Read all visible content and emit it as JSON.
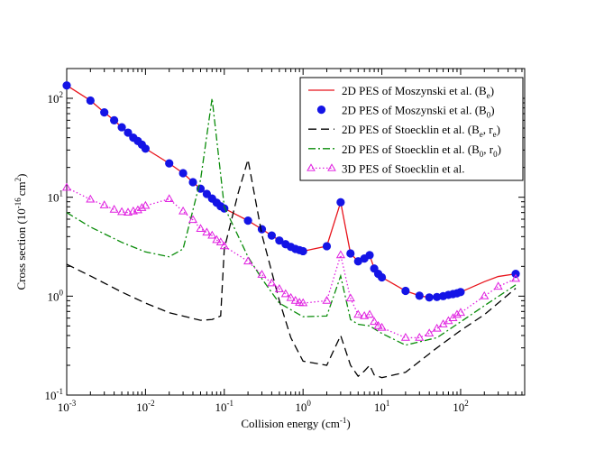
{
  "chart_data": {
    "type": "line",
    "title": "",
    "xlabel": "Collision energy (cm-1)",
    "xlabel_parts": {
      "text": "Collision energy (cm",
      "sup": "-1",
      "close": ")"
    },
    "ylabel": "Cross section (10-16 cm2)",
    "ylabel_parts": {
      "a": "Cross section (10",
      "sup1": "-16",
      "b": "cm",
      "sup2": "2",
      "c": ")"
    },
    "xscale": "log",
    "yscale": "log",
    "xlim": [
      0.001,
      650
    ],
    "ylim": [
      0.1,
      200
    ],
    "grid": false,
    "legend_position": "top-right",
    "x_ticks": [
      {
        "value": 0.001,
        "base": "10",
        "exp": "-3"
      },
      {
        "value": 0.01,
        "base": "10",
        "exp": "-2"
      },
      {
        "value": 0.1,
        "base": "10",
        "exp": "-1"
      },
      {
        "value": 1,
        "base": "10",
        "exp": "0"
      },
      {
        "value": 10,
        "base": "10",
        "exp": "1"
      },
      {
        "value": 100,
        "base": "10",
        "exp": "2"
      }
    ],
    "y_ticks": [
      {
        "value": 0.1,
        "base": "10",
        "exp": "-1"
      },
      {
        "value": 1,
        "base": "10",
        "exp": "0"
      },
      {
        "value": 10,
        "base": "10",
        "exp": "1"
      },
      {
        "value": 100,
        "base": "10",
        "exp": "2"
      }
    ],
    "series": [
      {
        "name": "2D PES of Moszynski et al. (Be)",
        "legend_main": "2D PES of Moszynski et al. (B",
        "legend_sub": "e",
        "legend_tail": ")",
        "style": "solid",
        "marker": "none",
        "color": "#e8141c",
        "x": [
          0.001,
          0.002,
          0.003,
          0.004,
          0.005,
          0.006,
          0.007,
          0.008,
          0.009,
          0.01,
          0.02,
          0.03,
          0.04,
          0.05,
          0.06,
          0.07,
          0.08,
          0.09,
          0.1,
          0.2,
          0.3,
          0.4,
          0.5,
          0.6,
          0.7,
          0.8,
          0.9,
          1,
          2,
          3,
          4,
          5,
          6,
          7,
          8,
          9,
          10,
          20,
          30,
          40,
          50,
          60,
          70,
          80,
          90,
          100,
          200,
          300,
          500
        ],
        "y": [
          135,
          95,
          72,
          60,
          51,
          45,
          40,
          37,
          34,
          31,
          22,
          17.5,
          14.2,
          12.2,
          10.8,
          9.7,
          8.8,
          8.1,
          7.7,
          5.8,
          4.75,
          4.1,
          3.65,
          3.35,
          3.15,
          3.0,
          2.92,
          2.85,
          3.2,
          8.9,
          2.7,
          2.25,
          2.4,
          2.6,
          1.9,
          1.68,
          1.55,
          1.13,
          1.01,
          0.97,
          0.98,
          1.0,
          1.03,
          1.05,
          1.07,
          1.1,
          1.4,
          1.58,
          1.68
        ]
      },
      {
        "name": "2D PES of Moszynski et al. (B0)",
        "legend_main": "2D PES of Moszynski et al. (B",
        "legend_sub": "0",
        "legend_tail": ")",
        "style": "none",
        "marker": "circle",
        "color": "#1414e6",
        "x": [
          0.001,
          0.002,
          0.003,
          0.004,
          0.005,
          0.006,
          0.007,
          0.008,
          0.009,
          0.01,
          0.02,
          0.03,
          0.04,
          0.05,
          0.06,
          0.07,
          0.08,
          0.09,
          0.1,
          0.2,
          0.3,
          0.4,
          0.5,
          0.6,
          0.7,
          0.8,
          0.9,
          1,
          2,
          3,
          4,
          5,
          6,
          7,
          8,
          9,
          10,
          20,
          30,
          40,
          50,
          60,
          70,
          80,
          90,
          100,
          500
        ],
        "y": [
          135,
          95,
          72,
          60,
          51,
          45,
          40,
          37,
          34,
          31,
          22,
          17.5,
          14.2,
          12.2,
          10.8,
          9.7,
          8.8,
          8.1,
          7.7,
          5.8,
          4.75,
          4.1,
          3.65,
          3.35,
          3.15,
          3.0,
          2.92,
          2.85,
          3.2,
          8.9,
          2.7,
          2.25,
          2.4,
          2.6,
          1.9,
          1.68,
          1.55,
          1.13,
          1.01,
          0.97,
          0.98,
          1.0,
          1.03,
          1.05,
          1.07,
          1.1,
          1.68
        ]
      },
      {
        "name": "2D PES of Stoecklin et al. (Be, re)",
        "legend_main": "2D PES of Stoecklin et al. (B",
        "legend_sub": "e",
        "legend_mid": ", r",
        "legend_sub2": "e",
        "legend_tail": ")",
        "style": "dashed",
        "marker": "none",
        "color": "#000000",
        "x": [
          0.001,
          0.002,
          0.005,
          0.01,
          0.02,
          0.05,
          0.07,
          0.09,
          0.1,
          0.15,
          0.2,
          0.3,
          0.5,
          0.7,
          1,
          2,
          3,
          4,
          5,
          6,
          7,
          8,
          10,
          20,
          50,
          100,
          200,
          500
        ],
        "y": [
          2.1,
          1.6,
          1.1,
          0.85,
          0.68,
          0.57,
          0.58,
          0.63,
          3.0,
          11.0,
          24.0,
          4.2,
          0.9,
          0.38,
          0.22,
          0.2,
          0.4,
          0.2,
          0.155,
          0.175,
          0.2,
          0.16,
          0.15,
          0.17,
          0.3,
          0.45,
          0.65,
          1.2
        ]
      },
      {
        "name": "2D PES of Stoecklin et al. (B0, r0)",
        "legend_main": "2D PES of Stoecklin et al. (B",
        "legend_sub": "0",
        "legend_mid": ", r",
        "legend_sub2": "0",
        "legend_tail": ")",
        "style": "dashdot",
        "marker": "none",
        "color": "#0a8c0a",
        "x": [
          0.001,
          0.002,
          0.005,
          0.01,
          0.02,
          0.03,
          0.05,
          0.07,
          0.1,
          0.2,
          0.3,
          0.5,
          1,
          2,
          3,
          4,
          5,
          7,
          10,
          20,
          50,
          100,
          200,
          500
        ],
        "y": [
          7.0,
          5.0,
          3.5,
          2.8,
          2.5,
          3.0,
          15.0,
          100.0,
          8.0,
          2.5,
          1.5,
          0.85,
          0.62,
          0.63,
          1.6,
          0.58,
          0.52,
          0.5,
          0.42,
          0.32,
          0.38,
          0.55,
          0.8,
          1.3
        ]
      },
      {
        "name": "3D PES of Stoecklin et al.",
        "legend_main": "3D PES of Stoecklin et al.",
        "style": "dotted",
        "marker": "triangle",
        "color": "#e020e0",
        "x": [
          0.001,
          0.002,
          0.003,
          0.004,
          0.005,
          0.006,
          0.007,
          0.008,
          0.009,
          0.01,
          0.02,
          0.03,
          0.04,
          0.05,
          0.06,
          0.07,
          0.08,
          0.09,
          0.1,
          0.2,
          0.3,
          0.4,
          0.5,
          0.6,
          0.7,
          0.8,
          0.9,
          1,
          2,
          3,
          4,
          5,
          6,
          7,
          8,
          9,
          10,
          20,
          30,
          40,
          50,
          60,
          70,
          80,
          90,
          100,
          200,
          300,
          500
        ],
        "y": [
          12.5,
          9.5,
          8.3,
          7.5,
          7.1,
          7.0,
          7.2,
          7.4,
          7.8,
          8.2,
          9.6,
          7.2,
          5.9,
          4.8,
          4.4,
          4.1,
          3.7,
          3.5,
          3.2,
          2.25,
          1.65,
          1.35,
          1.18,
          1.05,
          0.96,
          0.9,
          0.86,
          0.85,
          0.9,
          2.6,
          0.95,
          0.65,
          0.63,
          0.65,
          0.55,
          0.5,
          0.48,
          0.38,
          0.38,
          0.42,
          0.47,
          0.52,
          0.56,
          0.6,
          0.65,
          0.68,
          1.0,
          1.25,
          1.5
        ]
      }
    ]
  }
}
